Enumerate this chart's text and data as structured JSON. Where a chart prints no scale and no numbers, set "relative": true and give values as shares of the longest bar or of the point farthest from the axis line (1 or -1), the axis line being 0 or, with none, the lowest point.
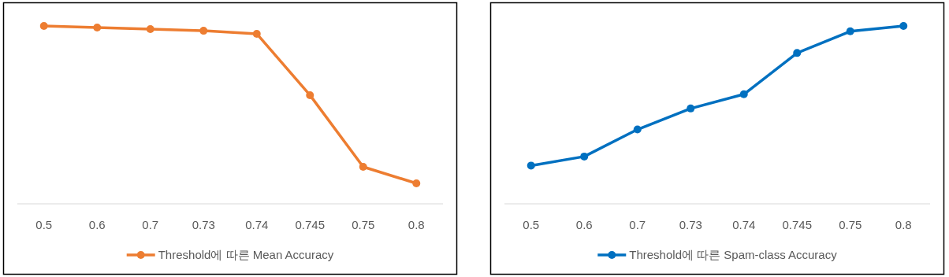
{
  "chart_data": [
    {
      "type": "line",
      "relative": true,
      "legend": "bottom",
      "marker": "circle",
      "categories": [
        "0.5",
        "0.6",
        "0.7",
        "0.73",
        "0.74",
        "0.745",
        "0.75",
        "0.8"
      ],
      "series": [
        {
          "name": "Threshold에 따른 Mean Accuracy",
          "color": "#ed7d31",
          "values": [
            1,
            0.991,
            0.982,
            0.973,
            0.956,
            0.611,
            0.208,
            0.115
          ]
        }
      ]
    },
    {
      "type": "line",
      "relative": true,
      "legend": "bottom",
      "marker": "circle",
      "categories": [
        "0.5",
        "0.6",
        "0.7",
        "0.73",
        "0.74",
        "0.745",
        "0.75",
        "0.8"
      ],
      "series": [
        {
          "name": "Threshold에 따른 Spam-class Accuracy",
          "color": "#0070c0",
          "values": [
            0.215,
            0.266,
            0.418,
            0.536,
            0.616,
            0.848,
            0.97,
            1
          ]
        }
      ]
    }
  ]
}
